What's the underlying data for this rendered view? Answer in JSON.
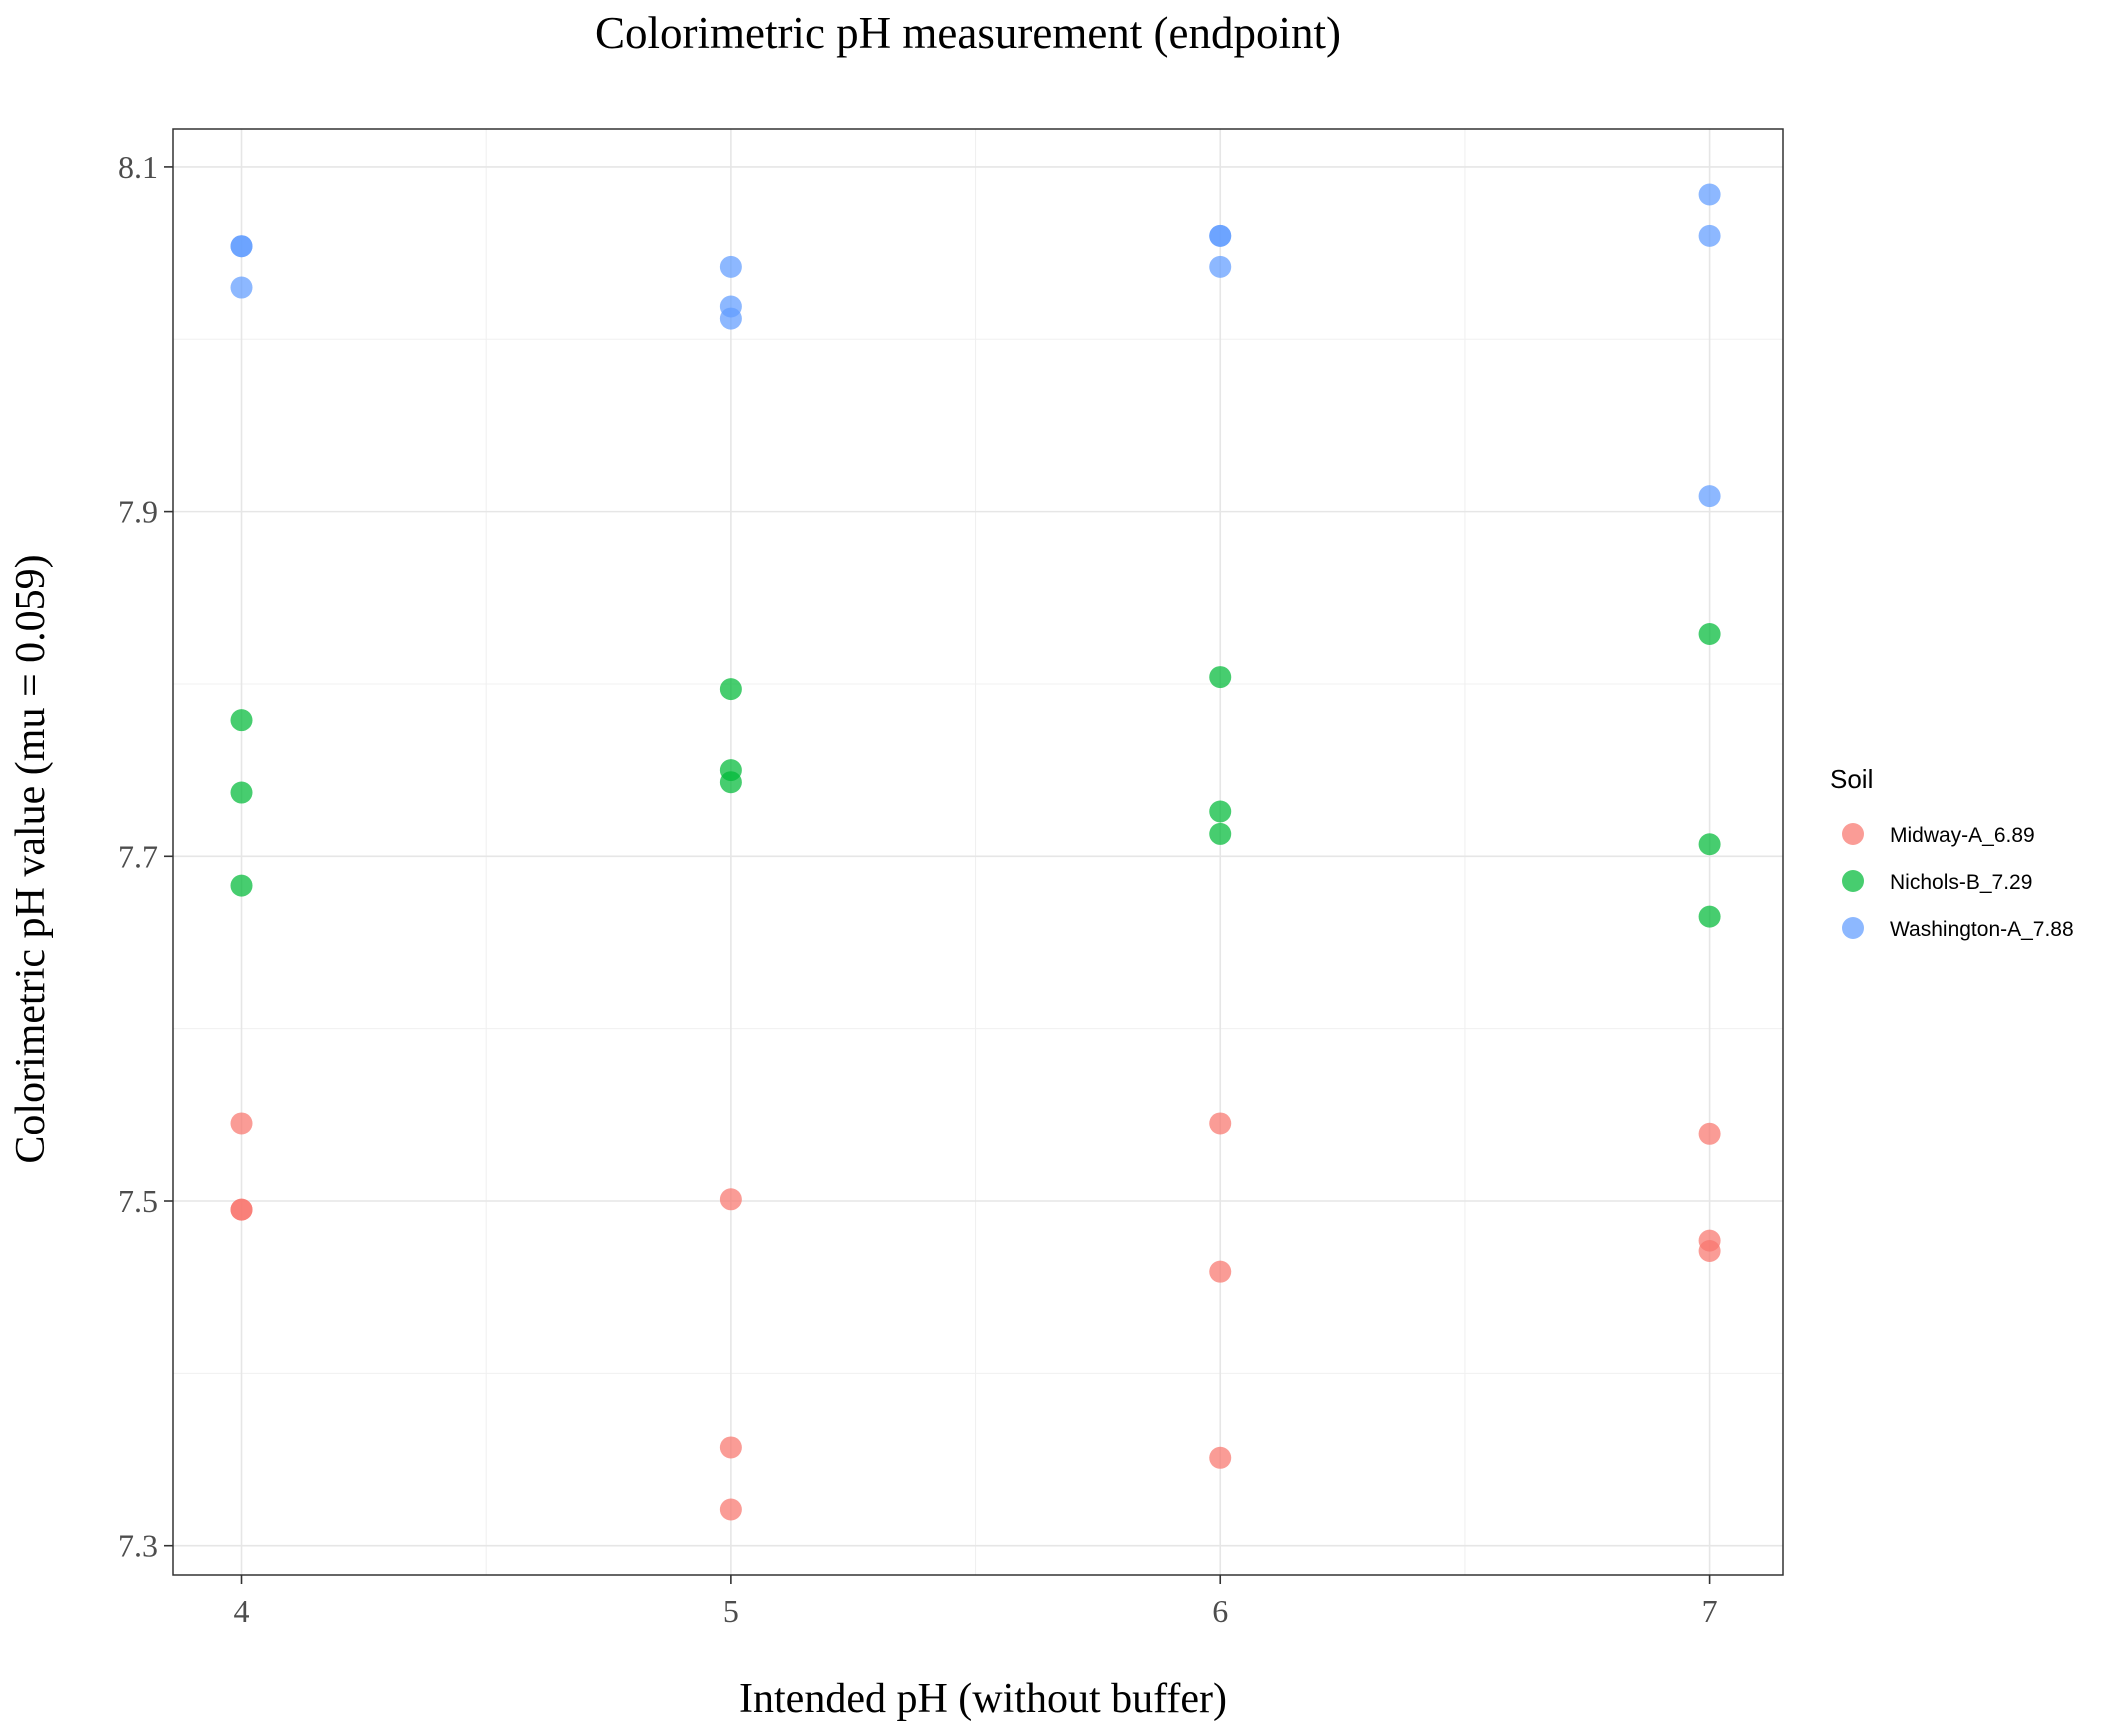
{
  "chart_data": {
    "type": "scatter",
    "title": "Colorimetric pH measurement (endpoint)",
    "xlabel": "Intended pH (without buffer)",
    "ylabel": "Colorimetric pH value (mu = 0.059)",
    "xlim": [
      3.86,
      7.15
    ],
    "ylim": [
      7.283,
      8.122
    ],
    "x_ticks": [
      4,
      5,
      6,
      7
    ],
    "y_ticks": [
      7.3,
      7.5,
      7.7,
      7.9,
      8.1
    ],
    "y_tick_labels": [
      "7.3",
      "7.5",
      "7.7",
      "7.9",
      "8.1"
    ],
    "x_tick_labels": [
      "4",
      "5",
      "6",
      "7"
    ],
    "grid": true,
    "legend": {
      "title": "Soil",
      "position": "right"
    },
    "series": [
      {
        "name": "Midway-A_6.89",
        "color": "#F8766D",
        "points": [
          [
            4,
            7.545
          ],
          [
            4,
            7.495
          ],
          [
            4,
            7.495
          ],
          [
            5,
            7.501
          ],
          [
            5,
            7.357
          ],
          [
            5,
            7.321
          ],
          [
            6,
            7.545
          ],
          [
            6,
            7.459
          ],
          [
            6,
            7.351
          ],
          [
            7,
            7.539
          ],
          [
            7,
            7.477
          ],
          [
            7,
            7.471
          ]
        ]
      },
      {
        "name": "Nichols-B_7.29",
        "color": "#00BA38",
        "points": [
          [
            4,
            7.779
          ],
          [
            4,
            7.737
          ],
          [
            4,
            7.683
          ],
          [
            5,
            7.797
          ],
          [
            5,
            7.75
          ],
          [
            5,
            7.743
          ],
          [
            6,
            7.804
          ],
          [
            6,
            7.726
          ],
          [
            6,
            7.713
          ],
          [
            7,
            7.829
          ],
          [
            7,
            7.707
          ],
          [
            7,
            7.665
          ]
        ]
      },
      {
        "name": "Washington-A_7.88",
        "color": "#619CFF",
        "points": [
          [
            4,
            8.054
          ],
          [
            4,
            8.054
          ],
          [
            4,
            8.03
          ],
          [
            5,
            8.042
          ],
          [
            5,
            8.019
          ],
          [
            5,
            8.012
          ],
          [
            6,
            8.06
          ],
          [
            6,
            8.06
          ],
          [
            6,
            8.042
          ],
          [
            7,
            8.084
          ],
          [
            7,
            8.06
          ],
          [
            7,
            7.909
          ]
        ]
      }
    ]
  }
}
